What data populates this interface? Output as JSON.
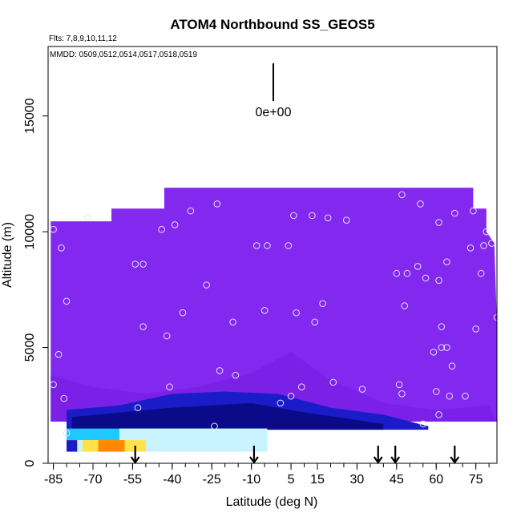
{
  "chart_data": {
    "type": "heatmap",
    "title": "ATOM4 Northbound SS_GEOS5",
    "subtitle_flights": "Flts: 7,8,9,10,11,12",
    "subtitle_dates": "MMDD: 0509,0512,0514,0517,0518,0519",
    "xlabel": "Latitude (deg N)",
    "ylabel": "Altitude (m)",
    "xlim": [
      -87,
      83
    ],
    "ylim": [
      0,
      18000
    ],
    "x_ticks": [
      -85,
      -70,
      -55,
      -40,
      -25,
      -10,
      5,
      15,
      30,
      45,
      60,
      75
    ],
    "y_ticks": [
      0,
      5000,
      10000,
      15000
    ],
    "scale_bar_label": "0e+00",
    "colors": {
      "background_field": "#8228ef",
      "low_magenta": "#7a1fe6",
      "low_blue": "#1a1cc8",
      "dark_navy": "#0b0b8a",
      "cyan": "#1fc8ff",
      "light_cyan": "#c9f4ff",
      "orange": "#ff8a00",
      "yellow": "#ffe24a",
      "marker_stroke": "#e8e0ff"
    },
    "field_top_profile": [
      {
        "lat": -86,
        "alt": 10450
      },
      {
        "lat": -63,
        "alt": 10450
      },
      {
        "lat": -63,
        "alt": 11000
      },
      {
        "lat": -43,
        "alt": 11000
      },
      {
        "lat": -43,
        "alt": 11900
      },
      {
        "lat": 74,
        "alt": 11900
      },
      {
        "lat": 74,
        "alt": 11000
      },
      {
        "lat": 79,
        "alt": 11000
      },
      {
        "lat": 79,
        "alt": 10000
      },
      {
        "lat": 82,
        "alt": 9500
      },
      {
        "lat": 83,
        "alt": 6000
      }
    ],
    "arrow_latitudes": [
      -54,
      -9,
      38,
      44.5,
      67
    ],
    "observation_points": [
      {
        "lat": -85,
        "alt": 10100
      },
      {
        "lat": -82,
        "alt": 9300
      },
      {
        "lat": -72,
        "alt": 10600
      },
      {
        "lat": -44,
        "alt": 10100
      },
      {
        "lat": -39,
        "alt": 10300
      },
      {
        "lat": -33,
        "alt": 10900
      },
      {
        "lat": -23,
        "alt": 11200
      },
      {
        "lat": -54,
        "alt": 8600
      },
      {
        "lat": -51,
        "alt": 8600
      },
      {
        "lat": -27,
        "alt": 7700
      },
      {
        "lat": -80,
        "alt": 7000
      },
      {
        "lat": -36,
        "alt": 6500
      },
      {
        "lat": -51,
        "alt": 5900
      },
      {
        "lat": -42,
        "alt": 5500
      },
      {
        "lat": -83,
        "alt": 4700
      },
      {
        "lat": -22,
        "alt": 4000
      },
      {
        "lat": -16,
        "alt": 3800
      },
      {
        "lat": -41,
        "alt": 3300
      },
      {
        "lat": -85,
        "alt": 3400
      },
      {
        "lat": -81,
        "alt": 2800
      },
      {
        "lat": -53,
        "alt": 2400
      },
      {
        "lat": -24,
        "alt": 1600
      },
      {
        "lat": -80,
        "alt": 1300
      },
      {
        "lat": -8,
        "alt": 9400
      },
      {
        "lat": -4,
        "alt": 9400
      },
      {
        "lat": 4,
        "alt": 9400
      },
      {
        "lat": 6,
        "alt": 10700
      },
      {
        "lat": 13,
        "alt": 10700
      },
      {
        "lat": 19,
        "alt": 10600
      },
      {
        "lat": 26,
        "alt": 10500
      },
      {
        "lat": -17,
        "alt": 6100
      },
      {
        "lat": -5,
        "alt": 6600
      },
      {
        "lat": 7,
        "alt": 6500
      },
      {
        "lat": 14,
        "alt": 6100
      },
      {
        "lat": 17,
        "alt": 6900
      },
      {
        "lat": 21,
        "alt": 3500
      },
      {
        "lat": 32,
        "alt": 3200
      },
      {
        "lat": 9,
        "alt": 3300
      },
      {
        "lat": 5,
        "alt": 2900
      },
      {
        "lat": 1,
        "alt": 2600
      },
      {
        "lat": 47,
        "alt": 11600
      },
      {
        "lat": 54,
        "alt": 11200
      },
      {
        "lat": 61,
        "alt": 10400
      },
      {
        "lat": 67,
        "alt": 10800
      },
      {
        "lat": 74,
        "alt": 10900
      },
      {
        "lat": 79,
        "alt": 10000
      },
      {
        "lat": 81,
        "alt": 9500
      },
      {
        "lat": 78,
        "alt": 9400
      },
      {
        "lat": 73,
        "alt": 9300
      },
      {
        "lat": 64,
        "alt": 8700
      },
      {
        "lat": 53,
        "alt": 8500
      },
      {
        "lat": 45,
        "alt": 8200
      },
      {
        "lat": 49,
        "alt": 8200
      },
      {
        "lat": 56,
        "alt": 8000
      },
      {
        "lat": 61,
        "alt": 7900
      },
      {
        "lat": 77,
        "alt": 8200
      },
      {
        "lat": 48,
        "alt": 6800
      },
      {
        "lat": 62,
        "alt": 5900
      },
      {
        "lat": 75,
        "alt": 5800
      },
      {
        "lat": 59,
        "alt": 4800
      },
      {
        "lat": 62,
        "alt": 5000
      },
      {
        "lat": 64,
        "alt": 5000
      },
      {
        "lat": 66,
        "alt": 4200
      },
      {
        "lat": 46,
        "alt": 3400
      },
      {
        "lat": 47,
        "alt": 3000
      },
      {
        "lat": 60,
        "alt": 3100
      },
      {
        "lat": 65,
        "alt": 2900
      },
      {
        "lat": 71,
        "alt": 2900
      },
      {
        "lat": 61,
        "alt": 2100
      },
      {
        "lat": 55,
        "alt": 1700
      },
      {
        "lat": 83,
        "alt": 6300
      }
    ]
  }
}
